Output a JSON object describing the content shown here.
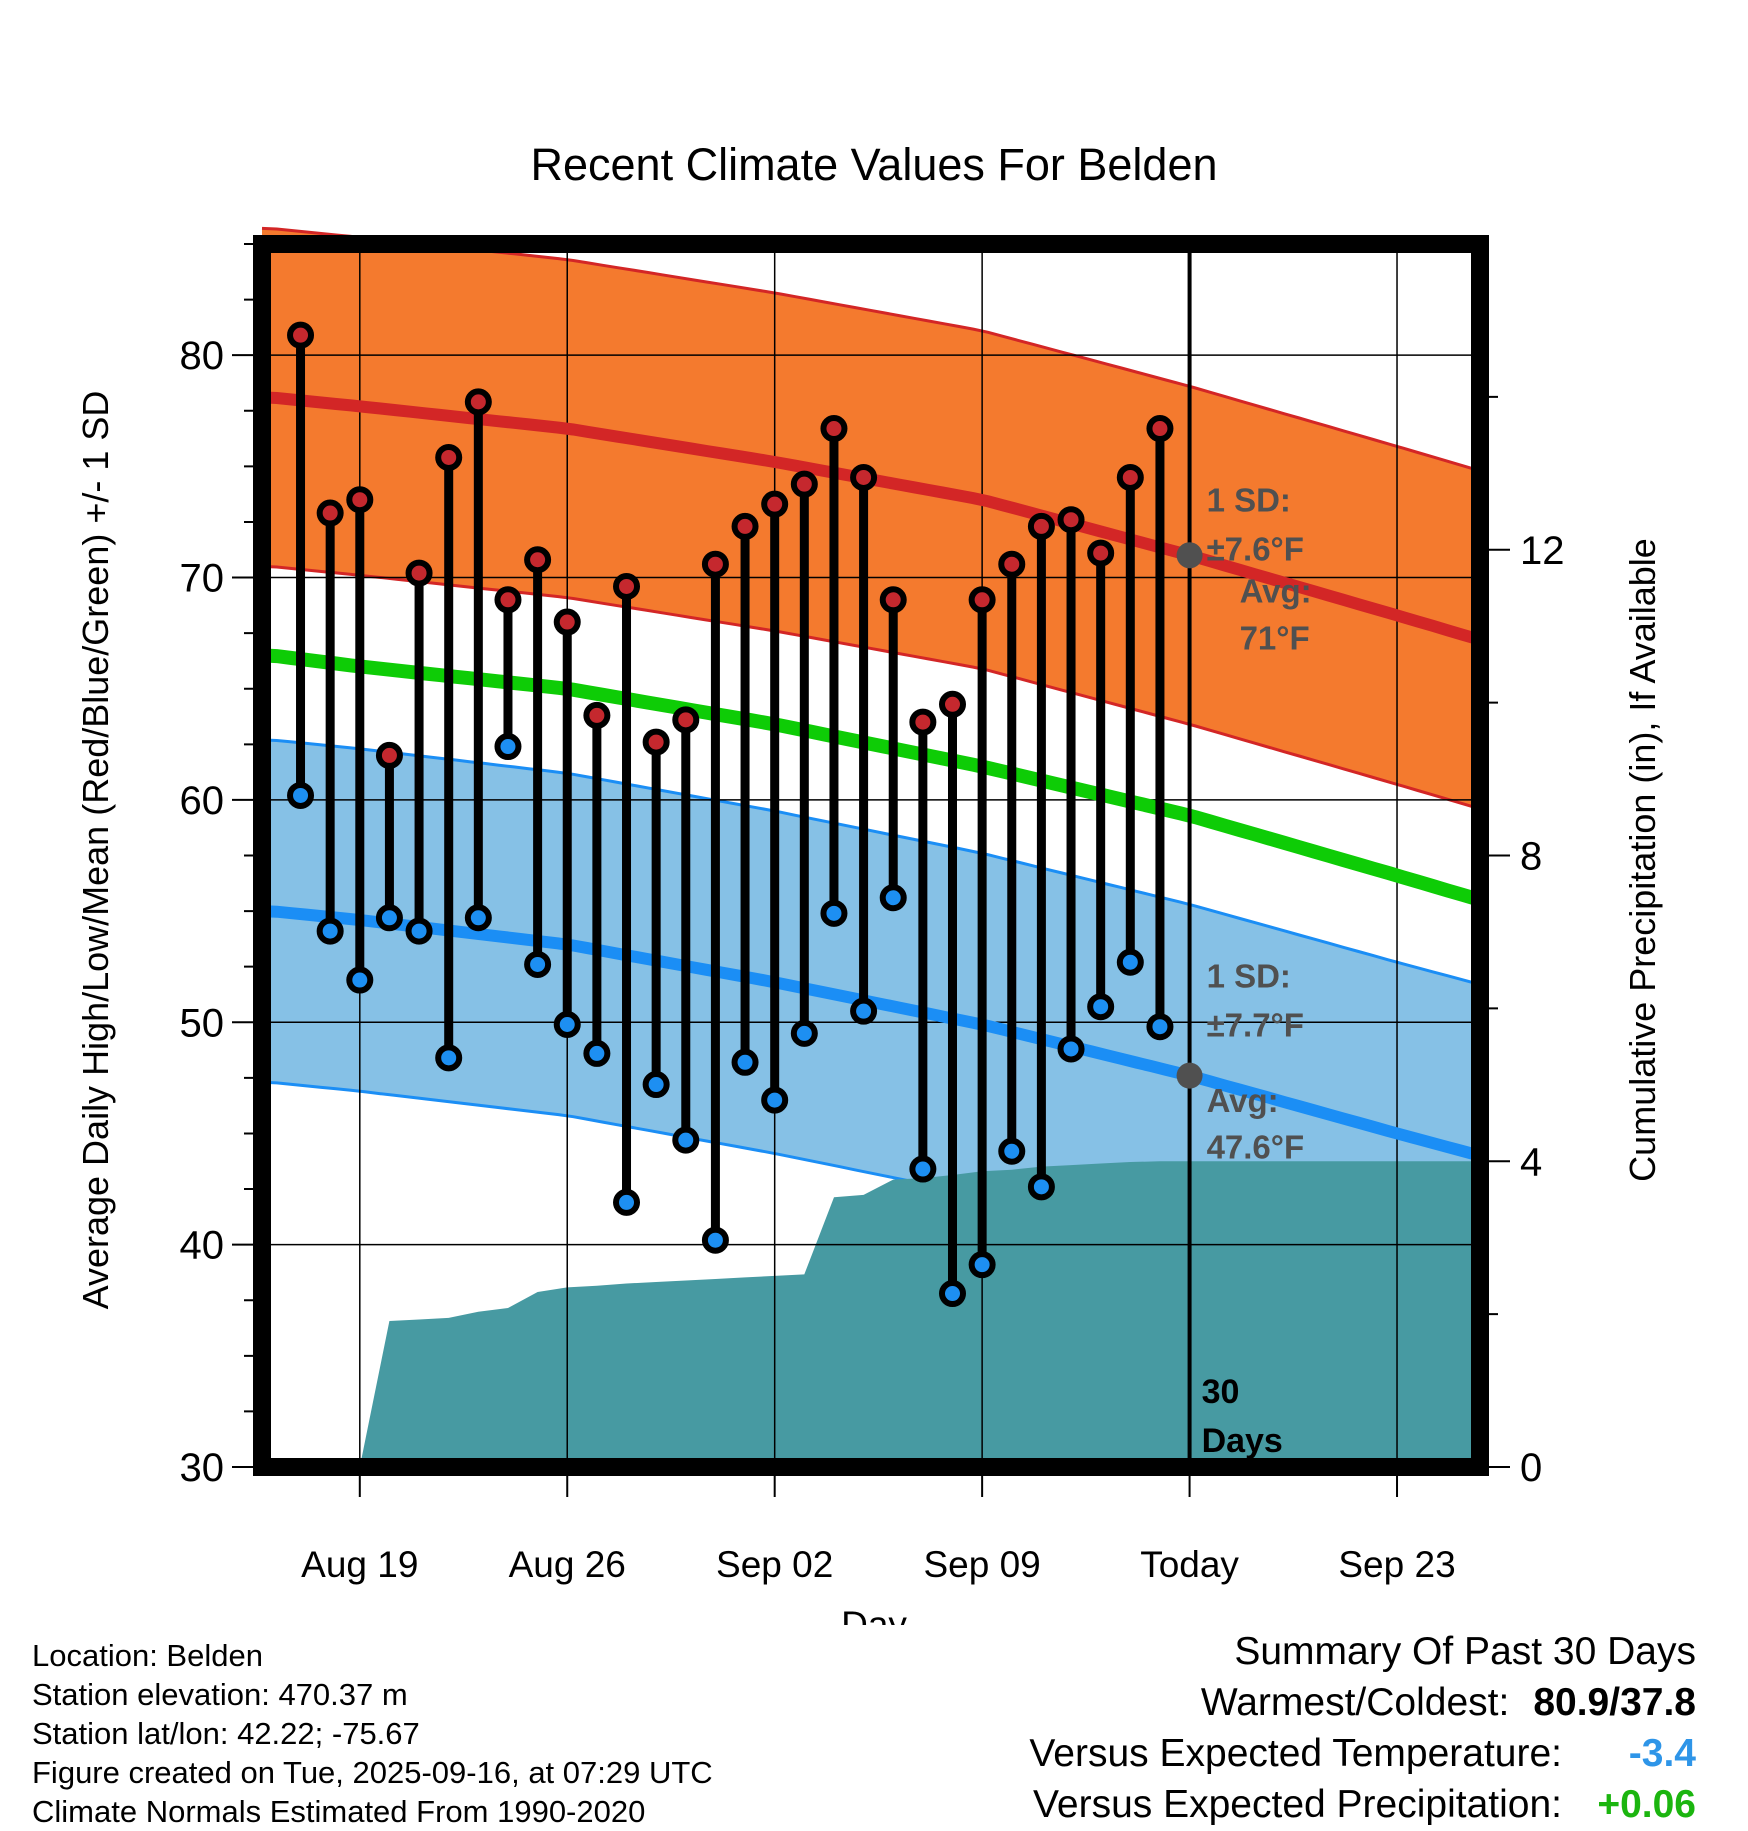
{
  "chart_data": {
    "type": "line",
    "title": "Recent Climate Values For Belden",
    "xlabel": "Day",
    "ylabel": "Average Daily High/Low/Mean (Red/Blue/Green) +/- 1 SD",
    "y2label": "Cumulative Precipitation (in), If Available",
    "ylim": [
      30,
      85
    ],
    "yticks": [
      30,
      40,
      50,
      60,
      70,
      80
    ],
    "y2lim": [
      0,
      16
    ],
    "y2ticks": [
      0,
      4,
      8,
      12
    ],
    "xlim": [
      -3.3,
      37.8
    ],
    "xticks": [
      {
        "day": 0,
        "label": "Aug 19"
      },
      {
        "day": 7,
        "label": "Aug 26"
      },
      {
        "day": 14,
        "label": "Sep 02"
      },
      {
        "day": 21,
        "label": "Sep 09"
      },
      {
        "day": 28,
        "label": "Today"
      },
      {
        "day": 35,
        "label": "Sep 23"
      }
    ],
    "grid": true,
    "days": [
      -2,
      -1,
      0,
      1,
      2,
      3,
      4,
      5,
      6,
      7,
      8,
      9,
      10,
      11,
      12,
      13,
      14,
      15,
      16,
      17,
      18,
      19,
      20,
      21,
      22,
      23,
      24,
      25,
      26,
      27
    ],
    "highs": [
      80.9,
      72.9,
      73.5,
      62.0,
      70.2,
      75.4,
      77.9,
      69.0,
      70.8,
      68.0,
      63.8,
      69.6,
      62.6,
      63.6,
      70.6,
      72.3,
      73.3,
      74.2,
      76.7,
      74.5,
      69.0,
      63.5,
      64.3,
      69.0,
      70.6,
      72.3,
      72.6,
      71.1,
      74.5,
      76.7
    ],
    "lows": [
      60.2,
      54.1,
      51.9,
      54.7,
      54.1,
      48.4,
      54.7,
      62.4,
      52.6,
      49.9,
      48.6,
      41.9,
      47.2,
      44.7,
      40.2,
      48.2,
      46.5,
      49.5,
      54.9,
      50.5,
      55.6,
      43.4,
      37.8,
      39.1,
      44.2,
      42.6,
      48.8,
      50.7,
      52.7,
      49.8
    ],
    "normal_high": {
      "days": [
        -3,
        0,
        7,
        14,
        21,
        28,
        35,
        37.8
      ],
      "values": [
        78.1,
        77.7,
        76.7,
        75.2,
        73.5,
        71.0,
        68.3,
        67.2
      ],
      "sd": 7.6
    },
    "normal_low": {
      "days": [
        -3,
        0,
        7,
        14,
        21,
        28,
        35,
        37.8
      ],
      "values": [
        55.0,
        54.6,
        53.5,
        51.8,
        49.9,
        47.6,
        45.0,
        44.0
      ],
      "sd": 7.7
    },
    "normal_mean": {
      "days": [
        -3,
        0,
        7,
        14,
        21,
        28,
        35,
        37.8
      ],
      "values": [
        66.5,
        66.0,
        65.0,
        63.4,
        61.5,
        59.3,
        56.6,
        55.5
      ]
    },
    "precip_cumulative": {
      "days": [
        0,
        1,
        2,
        3,
        4,
        5,
        6,
        7,
        8,
        9,
        10,
        11,
        12,
        13,
        14,
        15,
        16,
        17,
        18,
        19,
        20,
        21,
        22,
        23,
        24,
        25,
        26,
        27,
        37.8
      ],
      "values": [
        0,
        1.91,
        1.93,
        1.95,
        2.03,
        2.08,
        2.29,
        2.35,
        2.37,
        2.4,
        2.42,
        2.44,
        2.46,
        2.48,
        2.5,
        2.52,
        3.53,
        3.56,
        3.76,
        3.78,
        3.82,
        3.87,
        3.89,
        3.93,
        3.95,
        3.97,
        3.99,
        4.0,
        4.0
      ]
    },
    "today_day": 28,
    "annotations": {
      "high_sd_label": "1 SD:",
      "high_sd_value": "±7.6°F",
      "high_avg_label": "Avg:",
      "high_avg_value": "71°F",
      "low_sd_label": "1 SD:",
      "low_sd_value": "±7.7°F",
      "low_avg_label": "Avg:",
      "low_avg_value": "47.6°F",
      "high_avg_point": 71.0,
      "low_avg_point": 47.6,
      "window_label_1": "30",
      "window_label_2": "Days"
    },
    "colors": {
      "high_band": "#f47a2e",
      "high_line": "#d32626",
      "high_marker": "#c5282e",
      "low_band": "#86c1e6",
      "low_line": "#1b8ef5",
      "low_marker": "#1d8ff2",
      "mean_line": "#0ecc06",
      "precip": "#479aa2",
      "annotation": "#505050"
    }
  },
  "info": {
    "location": "Location: Belden",
    "elevation": "Station elevation: 470.37 m",
    "latlon": "Station lat/lon: 42.22; -75.67",
    "created": "Figure created on Tue, 2025-09-16, at 07:29 UTC",
    "normals": "Climate Normals Estimated From 1990-2020"
  },
  "summary": {
    "title": "Summary Of Past 30 Days",
    "warmest_label": "Warmest/Coldest:",
    "warmest_value": "80.9/37.8",
    "temp_label": "Versus Expected Temperature:",
    "temp_value": "-3.4",
    "temp_color": "#2e95e8",
    "precip_label": "Versus Expected Precipitation:",
    "precip_value": "+0.06",
    "precip_color": "#1bb50f"
  }
}
